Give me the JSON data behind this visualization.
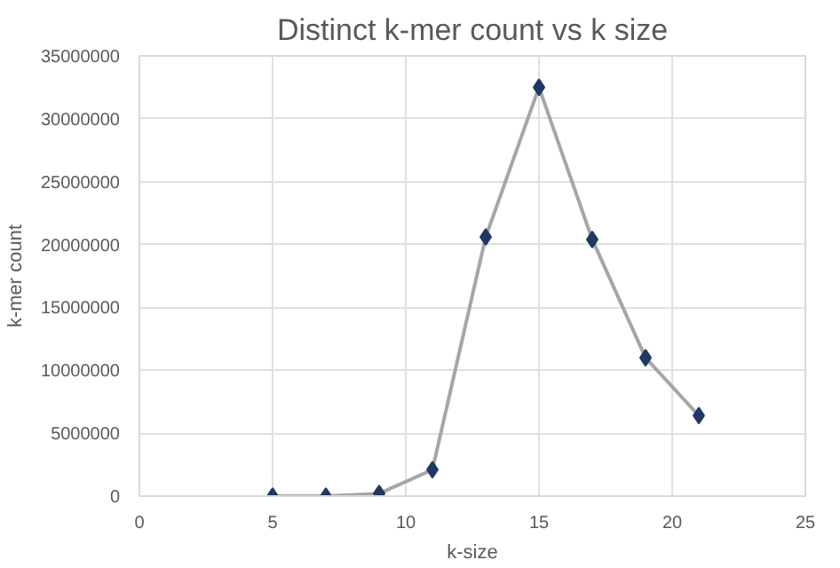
{
  "chart_data": {
    "type": "line",
    "title": "Distinct k-mer count vs k size",
    "xlabel": "k-size",
    "ylabel": "k-mer count",
    "x": [
      5,
      7,
      9,
      11,
      13,
      15,
      17,
      19,
      21
    ],
    "series": [
      {
        "color": "#a6a6a6",
        "colors": [
          "#1f3864",
          "#1f3864",
          "#1f3864",
          "#1f3864",
          "#1f3864",
          "#1f3864",
          "#1f3864",
          "#1f3864",
          "#1f3864"
        ],
        "values": [
          0,
          0,
          200000,
          2100000,
          20600000,
          32500000,
          20400000,
          11000000,
          6400000
        ]
      }
    ],
    "xlim": [
      0,
      25
    ],
    "xticks": [
      0,
      5,
      10,
      15,
      20,
      25
    ],
    "ylim": [
      0,
      35000000
    ],
    "yticks": [
      0,
      5000000,
      10000000,
      15000000,
      20000000,
      25000000,
      30000000,
      35000000
    ],
    "grid": true,
    "marker": "diamond",
    "line_style": "solid"
  }
}
